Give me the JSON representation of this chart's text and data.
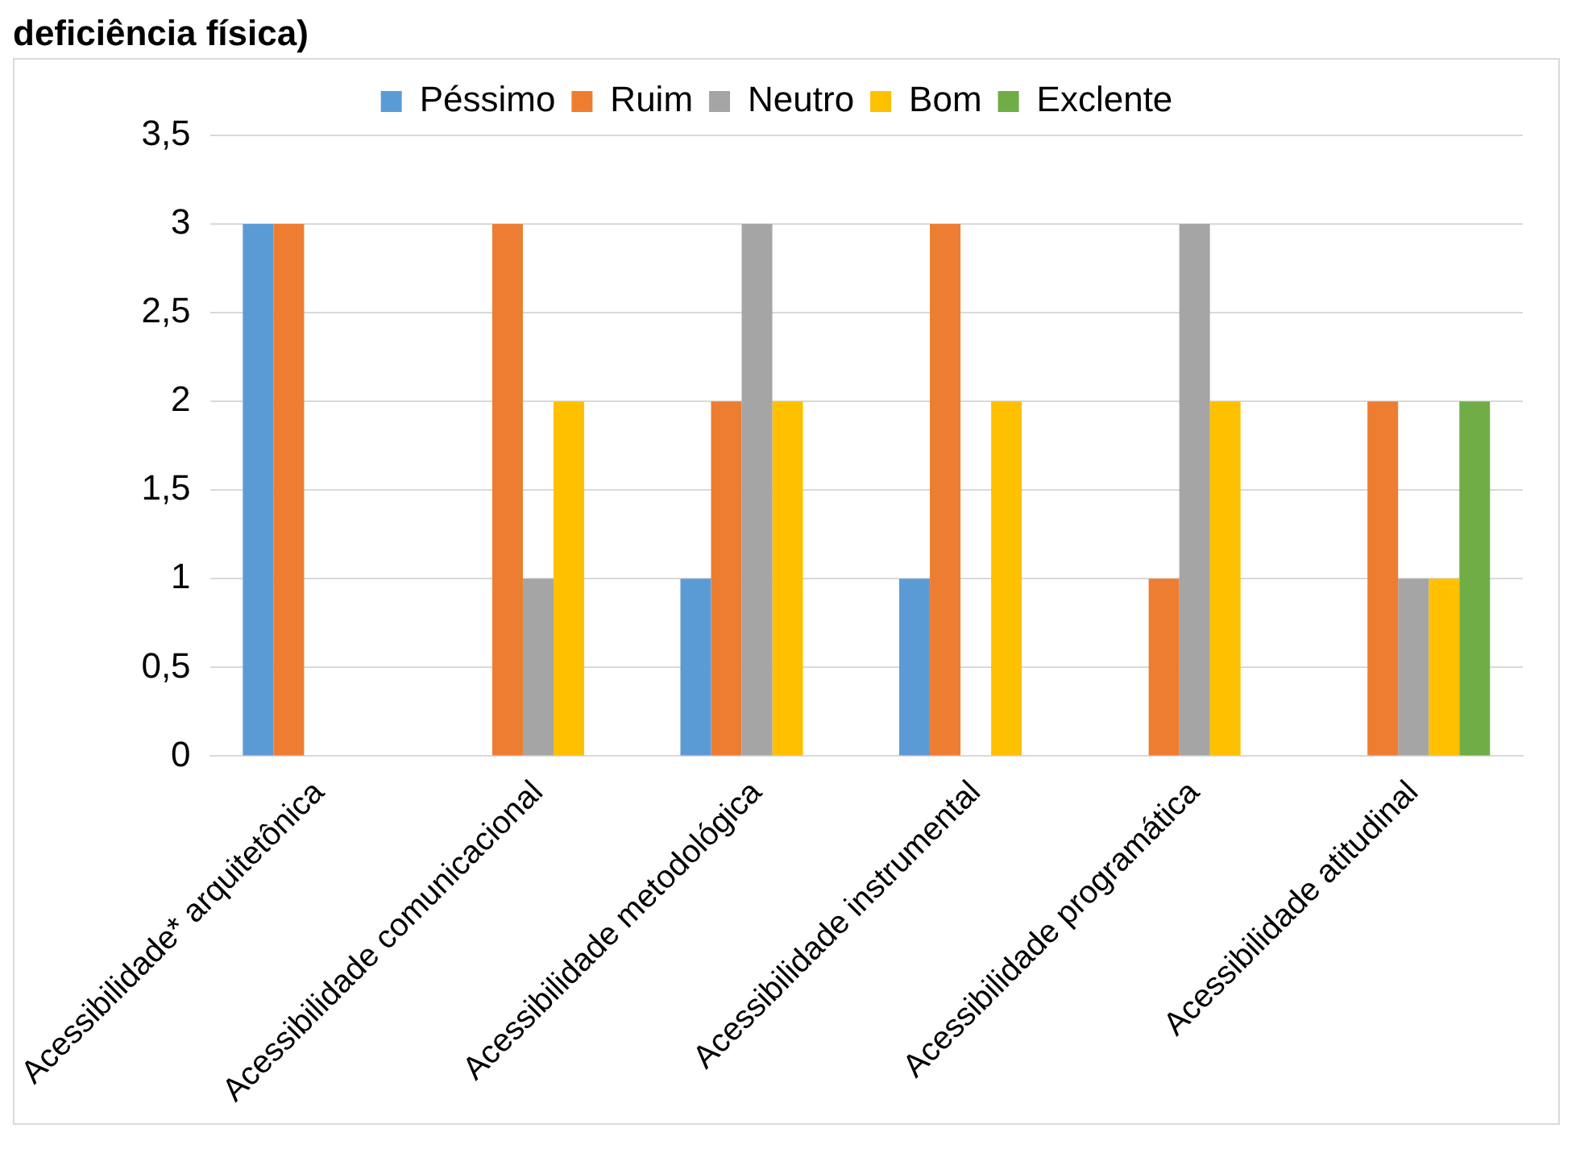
{
  "chart_data": {
    "type": "bar",
    "title": "deficiência física)",
    "categories": [
      "Acessibilidade* arquitetônica",
      "Acessibilidade comunicacional",
      "Acessibilidade metodológica",
      "Acessibilidade instrumental",
      "Acessibilidade programática",
      "Acessibilidade atitudinal"
    ],
    "series": [
      {
        "name": "Péssimo",
        "color": "#5b9bd5",
        "values": [
          3,
          0,
          1,
          1,
          0,
          0
        ]
      },
      {
        "name": "Ruim",
        "color": "#ed7d31",
        "values": [
          3,
          3,
          2,
          3,
          1,
          2
        ]
      },
      {
        "name": "Neutro",
        "color": "#a5a5a5",
        "values": [
          0,
          1,
          3,
          0,
          3,
          1
        ]
      },
      {
        "name": "Bom",
        "color": "#ffc000",
        "values": [
          0,
          2,
          2,
          2,
          2,
          1
        ]
      },
      {
        "name": "Exclente",
        "color": "#70ad47",
        "values": [
          0,
          0,
          0,
          0,
          0,
          2
        ]
      }
    ],
    "ylim": [
      0,
      3.5
    ],
    "yticks": [
      0,
      {
        "value": 0.5,
        "label": "0,5"
      },
      1,
      {
        "value": 1.5,
        "label": "1,5"
      },
      2,
      {
        "value": 2.5,
        "label": "2,5"
      },
      3,
      {
        "value": 3.5,
        "label": "3,5"
      }
    ],
    "grid": "y",
    "legend": "top"
  }
}
